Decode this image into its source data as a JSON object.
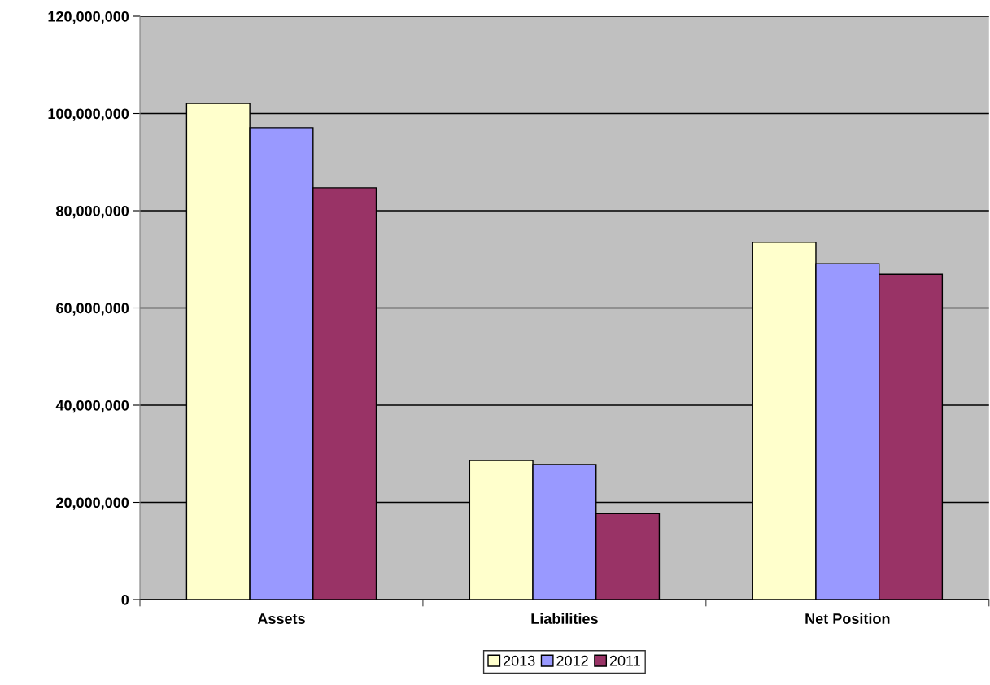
{
  "chart_data": {
    "type": "bar",
    "categories": [
      "Assets",
      "Liabilities",
      "Net Position"
    ],
    "series": [
      {
        "name": "2013",
        "color": "#ffffcc",
        "values": [
          102100000,
          28600000,
          73500000
        ]
      },
      {
        "name": "2012",
        "color": "#9999ff",
        "values": [
          97100000,
          27800000,
          69100000
        ]
      },
      {
        "name": "2011",
        "color": "#993366",
        "values": [
          84700000,
          17700000,
          66900000
        ]
      }
    ],
    "ylim": [
      0,
      120000000
    ],
    "yticks": [
      {
        "value": 0,
        "label": "0"
      },
      {
        "value": 20000000,
        "label": "20,000,000"
      },
      {
        "value": 40000000,
        "label": "40,000,000"
      },
      {
        "value": 60000000,
        "label": "60,000,000"
      },
      {
        "value": 80000000,
        "label": "80,000,000"
      },
      {
        "value": 100000000,
        "label": "100,000,000"
      },
      {
        "value": 120000000,
        "label": "120,000,000"
      }
    ],
    "grid": "y",
    "legend": "bottom"
  }
}
